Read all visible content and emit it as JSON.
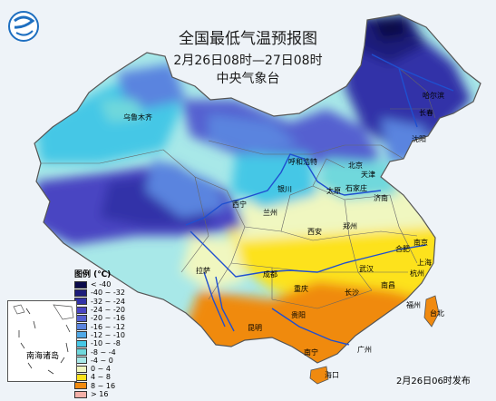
{
  "title": "全国最低气温预报图",
  "period": "2月26日08时—27日08时",
  "agency": "中央气象台",
  "release_time": "2月26日06时发布",
  "legend": {
    "title": "图例 (℃)",
    "items": [
      {
        "label": "< -40",
        "color": "#0a0a4a"
      },
      {
        "label": "-40 ~ -32",
        "color": "#1c1c7a"
      },
      {
        "label": "-32 ~ -24",
        "color": "#3232a8"
      },
      {
        "label": "-24 ~ -20",
        "color": "#4a45c2"
      },
      {
        "label": "-20 ~ -16",
        "color": "#5560d0"
      },
      {
        "label": "-16 ~ -12",
        "color": "#5a84df"
      },
      {
        "label": "-12 ~ -10",
        "color": "#4fa8e6"
      },
      {
        "label": "-10 ~ -8",
        "color": "#45c7e6"
      },
      {
        "label": "-8 ~ -4",
        "color": "#6fd8dc"
      },
      {
        "label": "-4 ~ 0",
        "color": "#a8e8e8"
      },
      {
        "label": "0 ~ 4",
        "color": "#f0f7c0"
      },
      {
        "label": "4 ~ 8",
        "color": "#fde21c"
      },
      {
        "label": "8 ~ 16",
        "color": "#f08a10"
      },
      {
        "label": "> 16",
        "color": "#f3b0a8"
      }
    ]
  },
  "inset_label": "南海诸岛",
  "cities": [
    "乌鲁木齐",
    "哈尔滨",
    "长春",
    "沈阳",
    "呼和浩特",
    "北京",
    "天津",
    "银川",
    "太原",
    "石家庄",
    "济南",
    "西宁",
    "兰州",
    "郑州",
    "西安",
    "拉萨",
    "成都",
    "合肥",
    "南京",
    "上海",
    "武汉",
    "杭州",
    "重庆",
    "长沙",
    "南昌",
    "贵阳",
    "福州",
    "台北",
    "昆明",
    "广州",
    "南宁",
    "海口"
  ],
  "colors": {
    "sea": "#eef3f8",
    "boundary": "#555555",
    "river": "#1f4fd0",
    "logo": "#1e6fc0"
  }
}
